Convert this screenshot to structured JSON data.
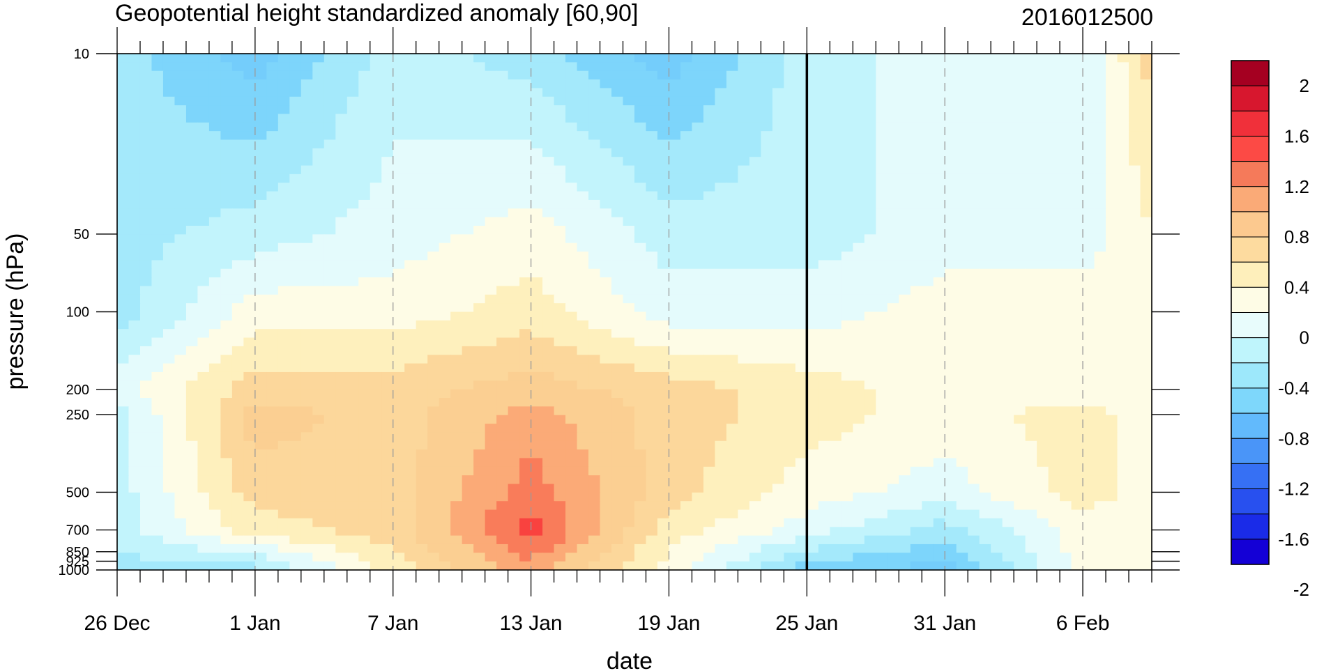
{
  "chart_data": {
    "type": "contour",
    "title": "Geopotential height standardized anomaly [60,90]",
    "subtitle": "2016012500",
    "xlabel": "date",
    "ylabel": "pressure (hPa)",
    "x_tick_labels": [
      "26 Dec",
      "1 Jan",
      "7 Jan",
      "13 Jan",
      "19 Jan",
      "25 Jan",
      "31 Jan",
      "6 Feb"
    ],
    "x_tick_days": [
      0,
      6,
      12,
      18,
      24,
      30,
      36,
      42
    ],
    "x_range_days": [
      0,
      45
    ],
    "y_levels": [
      10,
      50,
      100,
      200,
      250,
      500,
      700,
      850,
      925,
      1000
    ],
    "y_tick_labels": [
      "10",
      "50",
      "100",
      "200",
      "250",
      "500",
      "700",
      "850",
      "925",
      "1000"
    ],
    "y_scale": "log",
    "y_reversed": true,
    "y_range": [
      10,
      1000
    ],
    "vertical_line_at": "25 Jan",
    "colorbar": {
      "labels": [
        "2",
        "1.6",
        "1.2",
        "0.8",
        "0.4",
        "0",
        "-0.4",
        "-0.8",
        "-1.2",
        "-1.6",
        "-2"
      ],
      "colors": [
        "#a50021",
        "#d7172e",
        "#f0303a",
        "#fc4a45",
        "#f57a5a",
        "#faaa77",
        "#fcc98f",
        "#fddb9f",
        "#feefbb",
        "#fefce6",
        "#e8fcfc",
        "#bff5fc",
        "#9de8fb",
        "#7ed7fb",
        "#62bafc",
        "#4a95f8",
        "#3670f4",
        "#2850ef",
        "#1a2be8",
        "#1400d6"
      ]
    },
    "level_palette": {
      "-1.2": "#62b4fa",
      "-1.0": "#74cdfb",
      "-0.8": "#7dd5fb",
      "-0.6": "#a4e9fb",
      "-0.4": "#c2f4fc",
      "-0.2": "#e4fbfc",
      "0.0": "#fefce6",
      "0.2": "#fef0bd",
      "0.4": "#fcd79b",
      "0.6": "#fbcf92",
      "0.8": "#fbaa77",
      "1.0": "#f97c5a",
      "1.2": "#f9423f"
    },
    "anomaly_grid": {
      "x_days": [
        0,
        6,
        12,
        18,
        24,
        30,
        36,
        42,
        45
      ],
      "p_levels": [
        10,
        50,
        100,
        200,
        250,
        500,
        700,
        1000
      ],
      "values": [
        [
          -0.6,
          -1.0,
          -0.4,
          -0.6,
          -1.0,
          -0.4,
          -0.2,
          -0.3,
          0.4
        ],
        [
          -0.6,
          -0.4,
          -0.2,
          0.0,
          -0.4,
          -0.4,
          -0.2,
          -0.2,
          0.1
        ],
        [
          -0.6,
          0.0,
          0.0,
          0.2,
          -0.2,
          -0.2,
          0.0,
          0.0,
          0.0
        ],
        [
          -0.2,
          0.4,
          0.4,
          0.6,
          0.4,
          0.2,
          0.0,
          0.0,
          0.0
        ],
        [
          -0.4,
          0.6,
          0.4,
          0.8,
          0.4,
          0.2,
          0.0,
          0.2,
          0.0
        ],
        [
          -0.4,
          0.4,
          0.4,
          1.0,
          0.4,
          0.0,
          -0.2,
          0.2,
          0.0
        ],
        [
          -0.4,
          0.2,
          0.4,
          1.2,
          0.2,
          -0.2,
          -0.6,
          0.0,
          0.0
        ],
        [
          -0.6,
          -0.6,
          0.2,
          0.8,
          0.0,
          -0.8,
          -1.0,
          0.0,
          0.0
        ]
      ]
    }
  }
}
